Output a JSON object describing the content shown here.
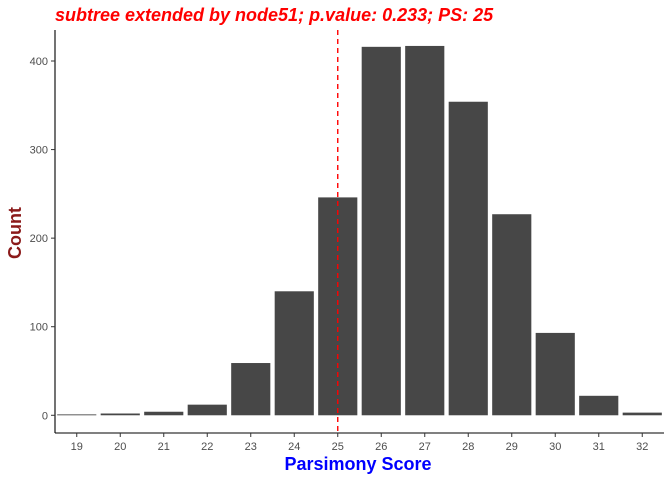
{
  "chart_data": {
    "type": "bar",
    "title": "subtree extended by node51; p.value: 0.233; PS: 25",
    "xlabel": "Parsimony Score",
    "ylabel": "Count",
    "categories": [
      "19",
      "20",
      "21",
      "22",
      "23",
      "24",
      "25",
      "26",
      "27",
      "28",
      "29",
      "30",
      "31",
      "32"
    ],
    "values": [
      1,
      2,
      4,
      12,
      59,
      140,
      246,
      416,
      417,
      354,
      227,
      93,
      22,
      3
    ],
    "yticks": [
      0,
      100,
      200,
      300,
      400
    ],
    "ylim": [
      -20,
      435
    ],
    "reference_line": {
      "x": "25",
      "style": "dashed"
    },
    "grid": false,
    "colors": {
      "bar": "#474747",
      "title": "#ff0000",
      "xlabel": "#0000ff",
      "ylabel": "#8b1a1a",
      "reference_line": "#ff0000",
      "axis": "#000000"
    }
  }
}
